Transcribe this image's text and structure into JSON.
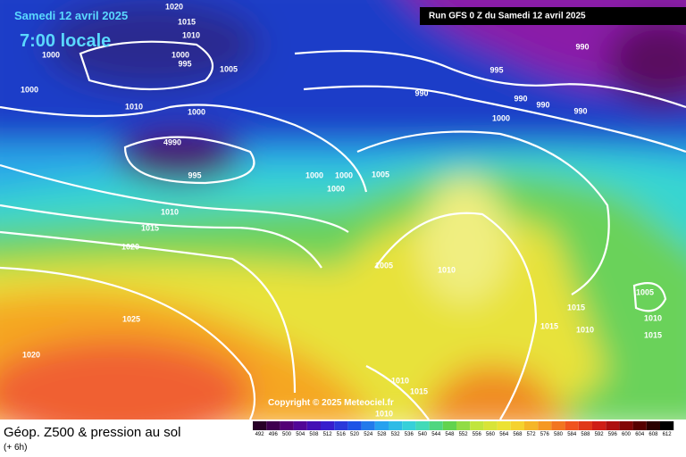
{
  "header": {
    "date": "Samedi 12 avril 2025",
    "time": "7:00 locale",
    "run": "Run GFS 0 Z du Samedi 12 avril 2025"
  },
  "isobar_labels": [
    1020,
    1015,
    1010,
    1000,
    1000,
    995,
    1005,
    1000,
    1010,
    1000,
    4990,
    995,
    1000,
    1000,
    1005,
    1000,
    1010,
    1015,
    1020,
    1025,
    1020,
    1005,
    1010,
    990,
    995,
    990,
    990,
    990,
    990,
    1000,
    1005,
    1010,
    1015,
    1015,
    1010,
    1015,
    1010,
    1015,
    1010
  ],
  "copyright": "Copyright © 2025 Meteociel.fr",
  "legend": {
    "title": "Géop. Z500 & pression au sol",
    "subtitle": "(+ 6h)",
    "scale": [
      492,
      496,
      500,
      504,
      508,
      512,
      516,
      520,
      524,
      528,
      532,
      536,
      540,
      544,
      548,
      552,
      556,
      560,
      564,
      568,
      572,
      576,
      580,
      584,
      588,
      592,
      596,
      600,
      604,
      608,
      612
    ]
  }
}
